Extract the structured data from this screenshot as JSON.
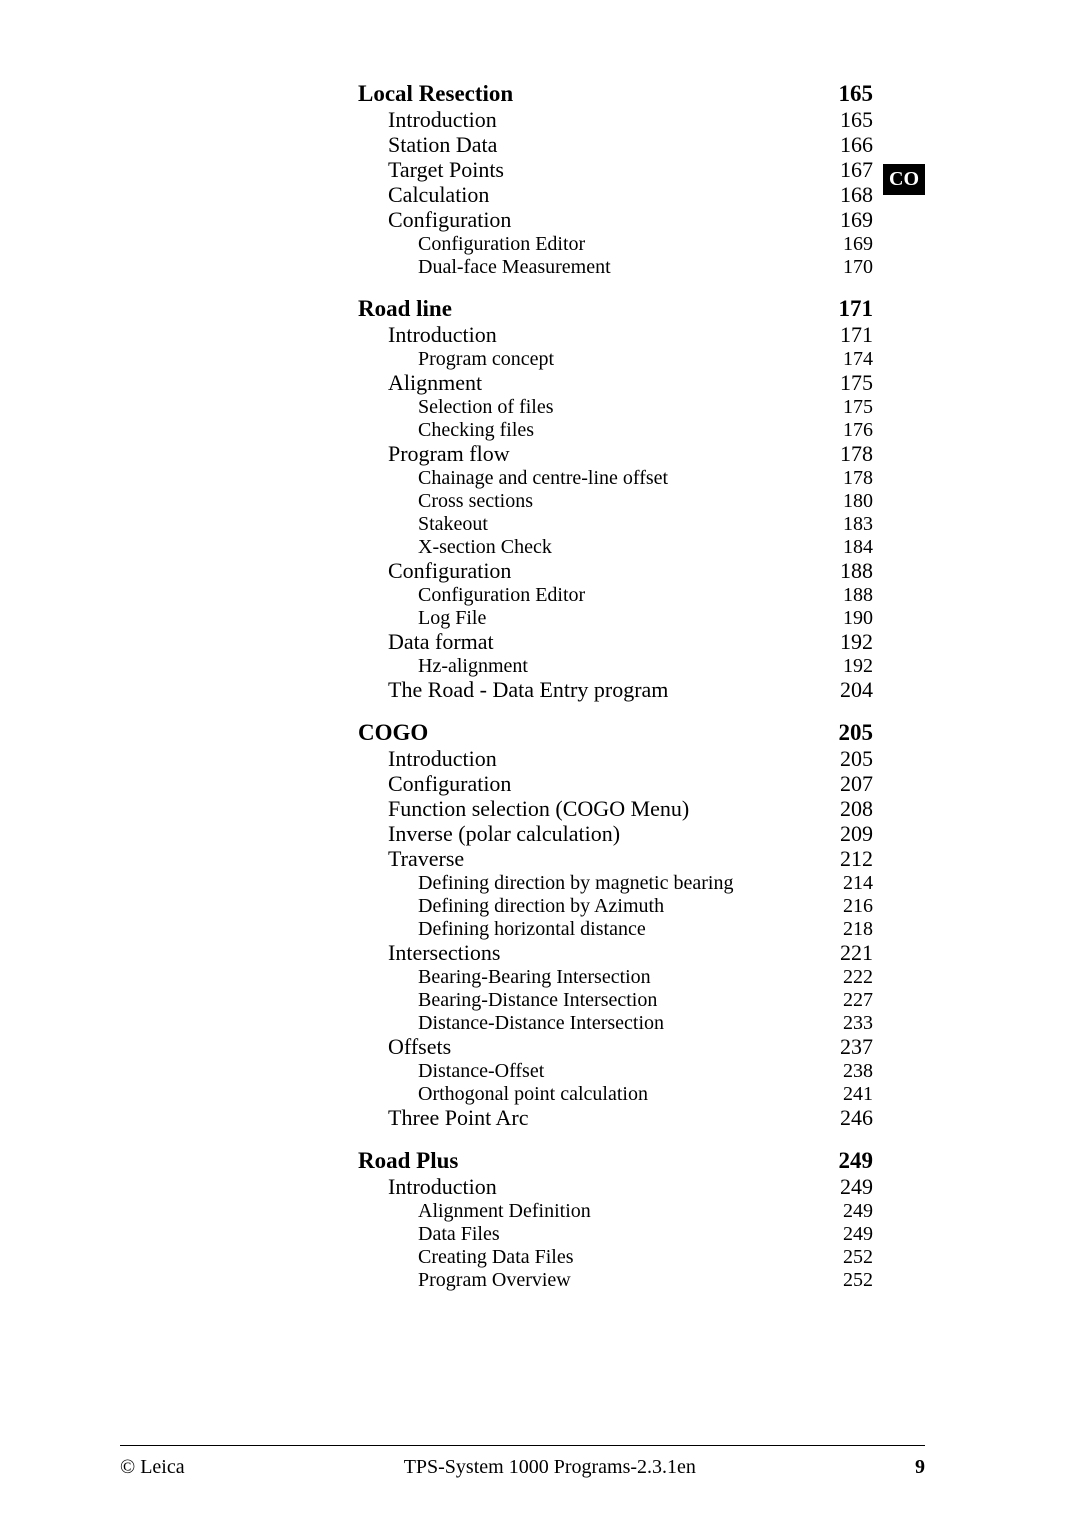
{
  "tab": "CO",
  "footer": {
    "left": "© Leica",
    "center": "TPS-System 1000 Programs-2.3.1en",
    "page": "9"
  },
  "sections": [
    {
      "title": "Local Resection",
      "page": "165",
      "items": [
        {
          "label": "Introduction",
          "page": "165",
          "lvl": 1
        },
        {
          "label": "Station Data",
          "page": "166",
          "lvl": 1
        },
        {
          "label": "Target Points",
          "page": "167",
          "lvl": 1
        },
        {
          "label": "Calculation",
          "page": "168",
          "lvl": 1
        },
        {
          "label": "Configuration",
          "page": "169",
          "lvl": 1
        },
        {
          "label": "Configuration Editor",
          "page": "169",
          "lvl": 2
        },
        {
          "label": "Dual-face Measurement",
          "page": "170",
          "lvl": 2
        }
      ]
    },
    {
      "title": "Road line",
      "page": "171",
      "items": [
        {
          "label": "Introduction",
          "page": "171",
          "lvl": 1
        },
        {
          "label": "Program concept",
          "page": "174",
          "lvl": 2
        },
        {
          "label": "Alignment",
          "page": "175",
          "lvl": 1
        },
        {
          "label": "Selection of files",
          "page": "175",
          "lvl": 2
        },
        {
          "label": "Checking files",
          "page": "176",
          "lvl": 2
        },
        {
          "label": "Program flow",
          "page": "178",
          "lvl": 1
        },
        {
          "label": "Chainage and centre-line offset",
          "page": "178",
          "lvl": 2
        },
        {
          "label": "Cross sections",
          "page": "180",
          "lvl": 2
        },
        {
          "label": "Stakeout",
          "page": "183",
          "lvl": 2
        },
        {
          "label": "X-section Check",
          "page": "184",
          "lvl": 2
        },
        {
          "label": "Configuration",
          "page": "188",
          "lvl": 1
        },
        {
          "label": "Configuration Editor",
          "page": "188",
          "lvl": 2
        },
        {
          "label": "Log File",
          "page": "190",
          "lvl": 2
        },
        {
          "label": "Data format",
          "page": "192",
          "lvl": 1
        },
        {
          "label": "Hz-alignment",
          "page": "192",
          "lvl": 2
        },
        {
          "label": "The Road - Data Entry program",
          "page": "204",
          "lvl": 1
        }
      ]
    },
    {
      "title": "COGO",
      "page": "205",
      "items": [
        {
          "label": "Introduction",
          "page": "205",
          "lvl": 1
        },
        {
          "label": "Configuration",
          "page": "207",
          "lvl": 1
        },
        {
          "label": "Function selection (COGO Menu)",
          "page": "208",
          "lvl": 1
        },
        {
          "label": "Inverse (polar calculation)",
          "page": "209",
          "lvl": 1
        },
        {
          "label": "Traverse",
          "page": "212",
          "lvl": 1
        },
        {
          "label": "Defining direction by magnetic bearing",
          "page": "214",
          "lvl": 2
        },
        {
          "label": "Defining direction by Azimuth",
          "page": "216",
          "lvl": 2
        },
        {
          "label": "Defining horizontal distance",
          "page": "218",
          "lvl": 2
        },
        {
          "label": "Intersections",
          "page": "221",
          "lvl": 1
        },
        {
          "label": "Bearing-Bearing Intersection",
          "page": "222",
          "lvl": 2
        },
        {
          "label": "Bearing-Distance Intersection",
          "page": "227",
          "lvl": 2
        },
        {
          "label": "Distance-Distance Intersection",
          "page": "233",
          "lvl": 2
        },
        {
          "label": "Offsets",
          "page": "237",
          "lvl": 1
        },
        {
          "label": "Distance-Offset",
          "page": "238",
          "lvl": 2
        },
        {
          "label": "Orthogonal point calculation",
          "page": "241",
          "lvl": 2
        },
        {
          "label": "Three Point Arc",
          "page": "246",
          "lvl": 1
        }
      ]
    },
    {
      "title": "Road Plus",
      "page": "249",
      "items": [
        {
          "label": "Introduction",
          "page": "249",
          "lvl": 1
        },
        {
          "label": "Alignment Definition",
          "page": "249",
          "lvl": 2
        },
        {
          "label": "Data Files",
          "page": "249",
          "lvl": 2
        },
        {
          "label": "Creating Data Files",
          "page": "252",
          "lvl": 2
        },
        {
          "label": "Program Overview",
          "page": "252",
          "lvl": 2
        }
      ]
    }
  ]
}
